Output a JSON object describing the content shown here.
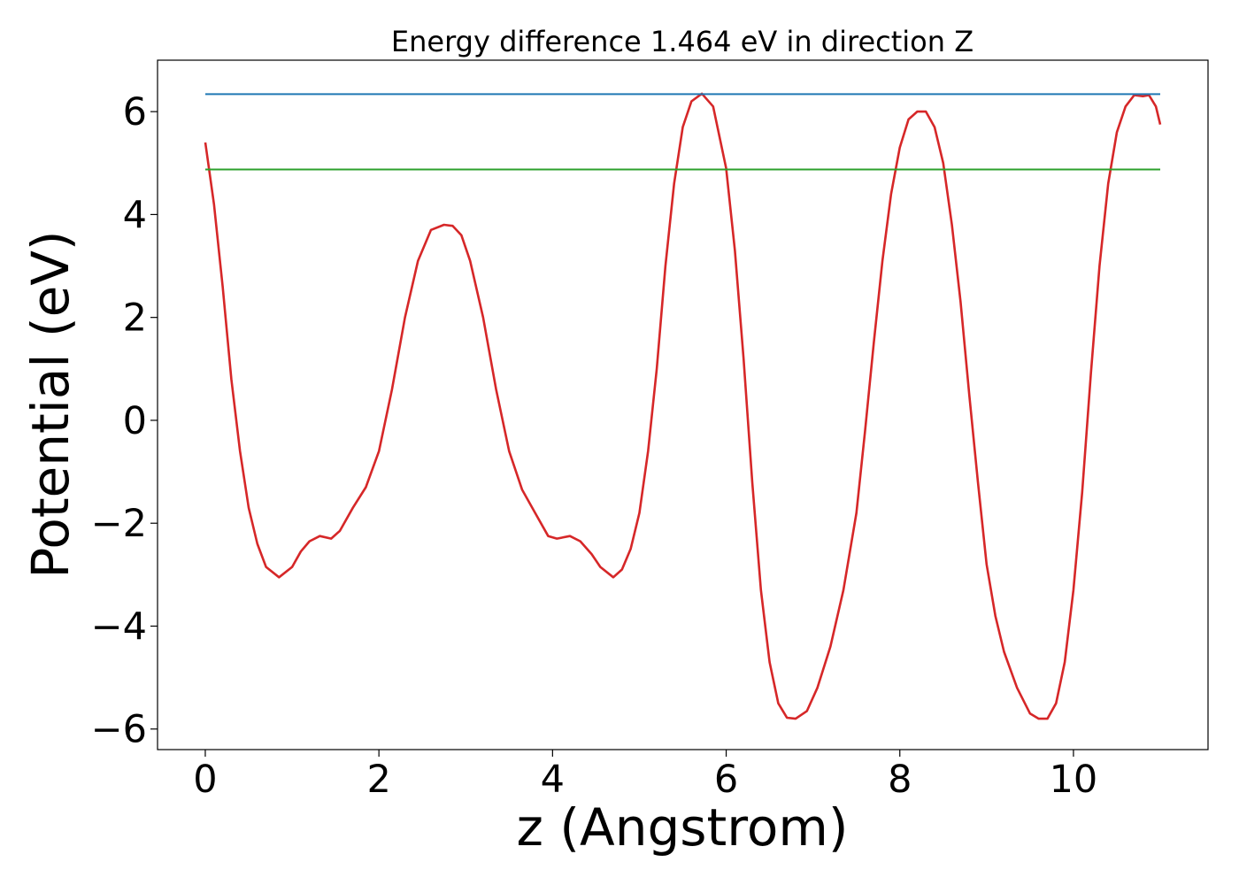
{
  "chart_data": {
    "type": "line",
    "title": "Energy difference 1.464 eV in direction Z",
    "xlabel": "z (Angstrom)",
    "ylabel": "Potential (eV)",
    "xlim": [
      -0.55,
      11.55
    ],
    "ylim": [
      -6.4,
      7.0
    ],
    "xticks": [
      0,
      2,
      4,
      6,
      8,
      10
    ],
    "xtick_labels": [
      "0",
      "2",
      "4",
      "6",
      "8",
      "10"
    ],
    "yticks": [
      -6,
      -4,
      -2,
      0,
      2,
      4,
      6
    ],
    "ytick_labels": [
      "−6",
      "−4",
      "−2",
      "0",
      "2",
      "4",
      "6"
    ],
    "grid": false,
    "legend": "none",
    "series": [
      {
        "color": "#d62728",
        "x": [
          0.0,
          0.1,
          0.2,
          0.3,
          0.4,
          0.5,
          0.6,
          0.7,
          0.85,
          1.0,
          1.1,
          1.2,
          1.32,
          1.45,
          1.55,
          1.7,
          1.85,
          2.0,
          2.15,
          2.3,
          2.45,
          2.6,
          2.75,
          2.85,
          2.95,
          3.05,
          3.2,
          3.35,
          3.5,
          3.65,
          3.8,
          3.95,
          4.05,
          4.2,
          4.32,
          4.45,
          4.55,
          4.7,
          4.8,
          4.9,
          5.0,
          5.1,
          5.2,
          5.3,
          5.4,
          5.5,
          5.6,
          5.72,
          5.85,
          6.0,
          6.1,
          6.2,
          6.3,
          6.4,
          6.5,
          6.6,
          6.7,
          6.8,
          6.93,
          7.05,
          7.2,
          7.35,
          7.5,
          7.6,
          7.7,
          7.8,
          7.9,
          8.0,
          8.1,
          8.2,
          8.3,
          8.4,
          8.5,
          8.6,
          8.7,
          8.8,
          8.9,
          9.0,
          9.1,
          9.2,
          9.35,
          9.5,
          9.6,
          9.7,
          9.8,
          9.9,
          10.0,
          10.1,
          10.2,
          10.3,
          10.4,
          10.5,
          10.6,
          10.7,
          10.8,
          10.87,
          10.95,
          11.0
        ],
        "y": [
          5.4,
          4.2,
          2.6,
          0.8,
          -0.6,
          -1.7,
          -2.4,
          -2.85,
          -3.05,
          -2.85,
          -2.55,
          -2.35,
          -2.25,
          -2.3,
          -2.15,
          -1.7,
          -1.3,
          -0.6,
          0.6,
          2.0,
          3.1,
          3.7,
          3.8,
          3.78,
          3.6,
          3.1,
          2.0,
          0.6,
          -0.6,
          -1.35,
          -1.8,
          -2.25,
          -2.3,
          -2.25,
          -2.35,
          -2.6,
          -2.85,
          -3.05,
          -2.9,
          -2.5,
          -1.8,
          -0.6,
          1.0,
          3.0,
          4.6,
          5.7,
          6.2,
          6.35,
          6.1,
          4.9,
          3.3,
          1.2,
          -1.2,
          -3.3,
          -4.7,
          -5.5,
          -5.78,
          -5.8,
          -5.65,
          -5.2,
          -4.4,
          -3.3,
          -1.8,
          -0.2,
          1.5,
          3.1,
          4.4,
          5.3,
          5.85,
          6.0,
          6.0,
          5.7,
          5.0,
          3.8,
          2.3,
          0.5,
          -1.2,
          -2.8,
          -3.8,
          -4.5,
          -5.2,
          -5.7,
          -5.8,
          -5.8,
          -5.5,
          -4.7,
          -3.3,
          -1.4,
          0.9,
          3.0,
          4.6,
          5.6,
          6.1,
          6.32,
          6.3,
          6.32,
          6.1,
          5.75
        ]
      },
      {
        "color": "#1f77b4",
        "x": [
          0,
          11.0
        ],
        "y": [
          6.34,
          6.34
        ]
      },
      {
        "color": "#2ca02c",
        "x": [
          0,
          11.0
        ],
        "y": [
          4.876,
          4.876
        ]
      }
    ]
  }
}
